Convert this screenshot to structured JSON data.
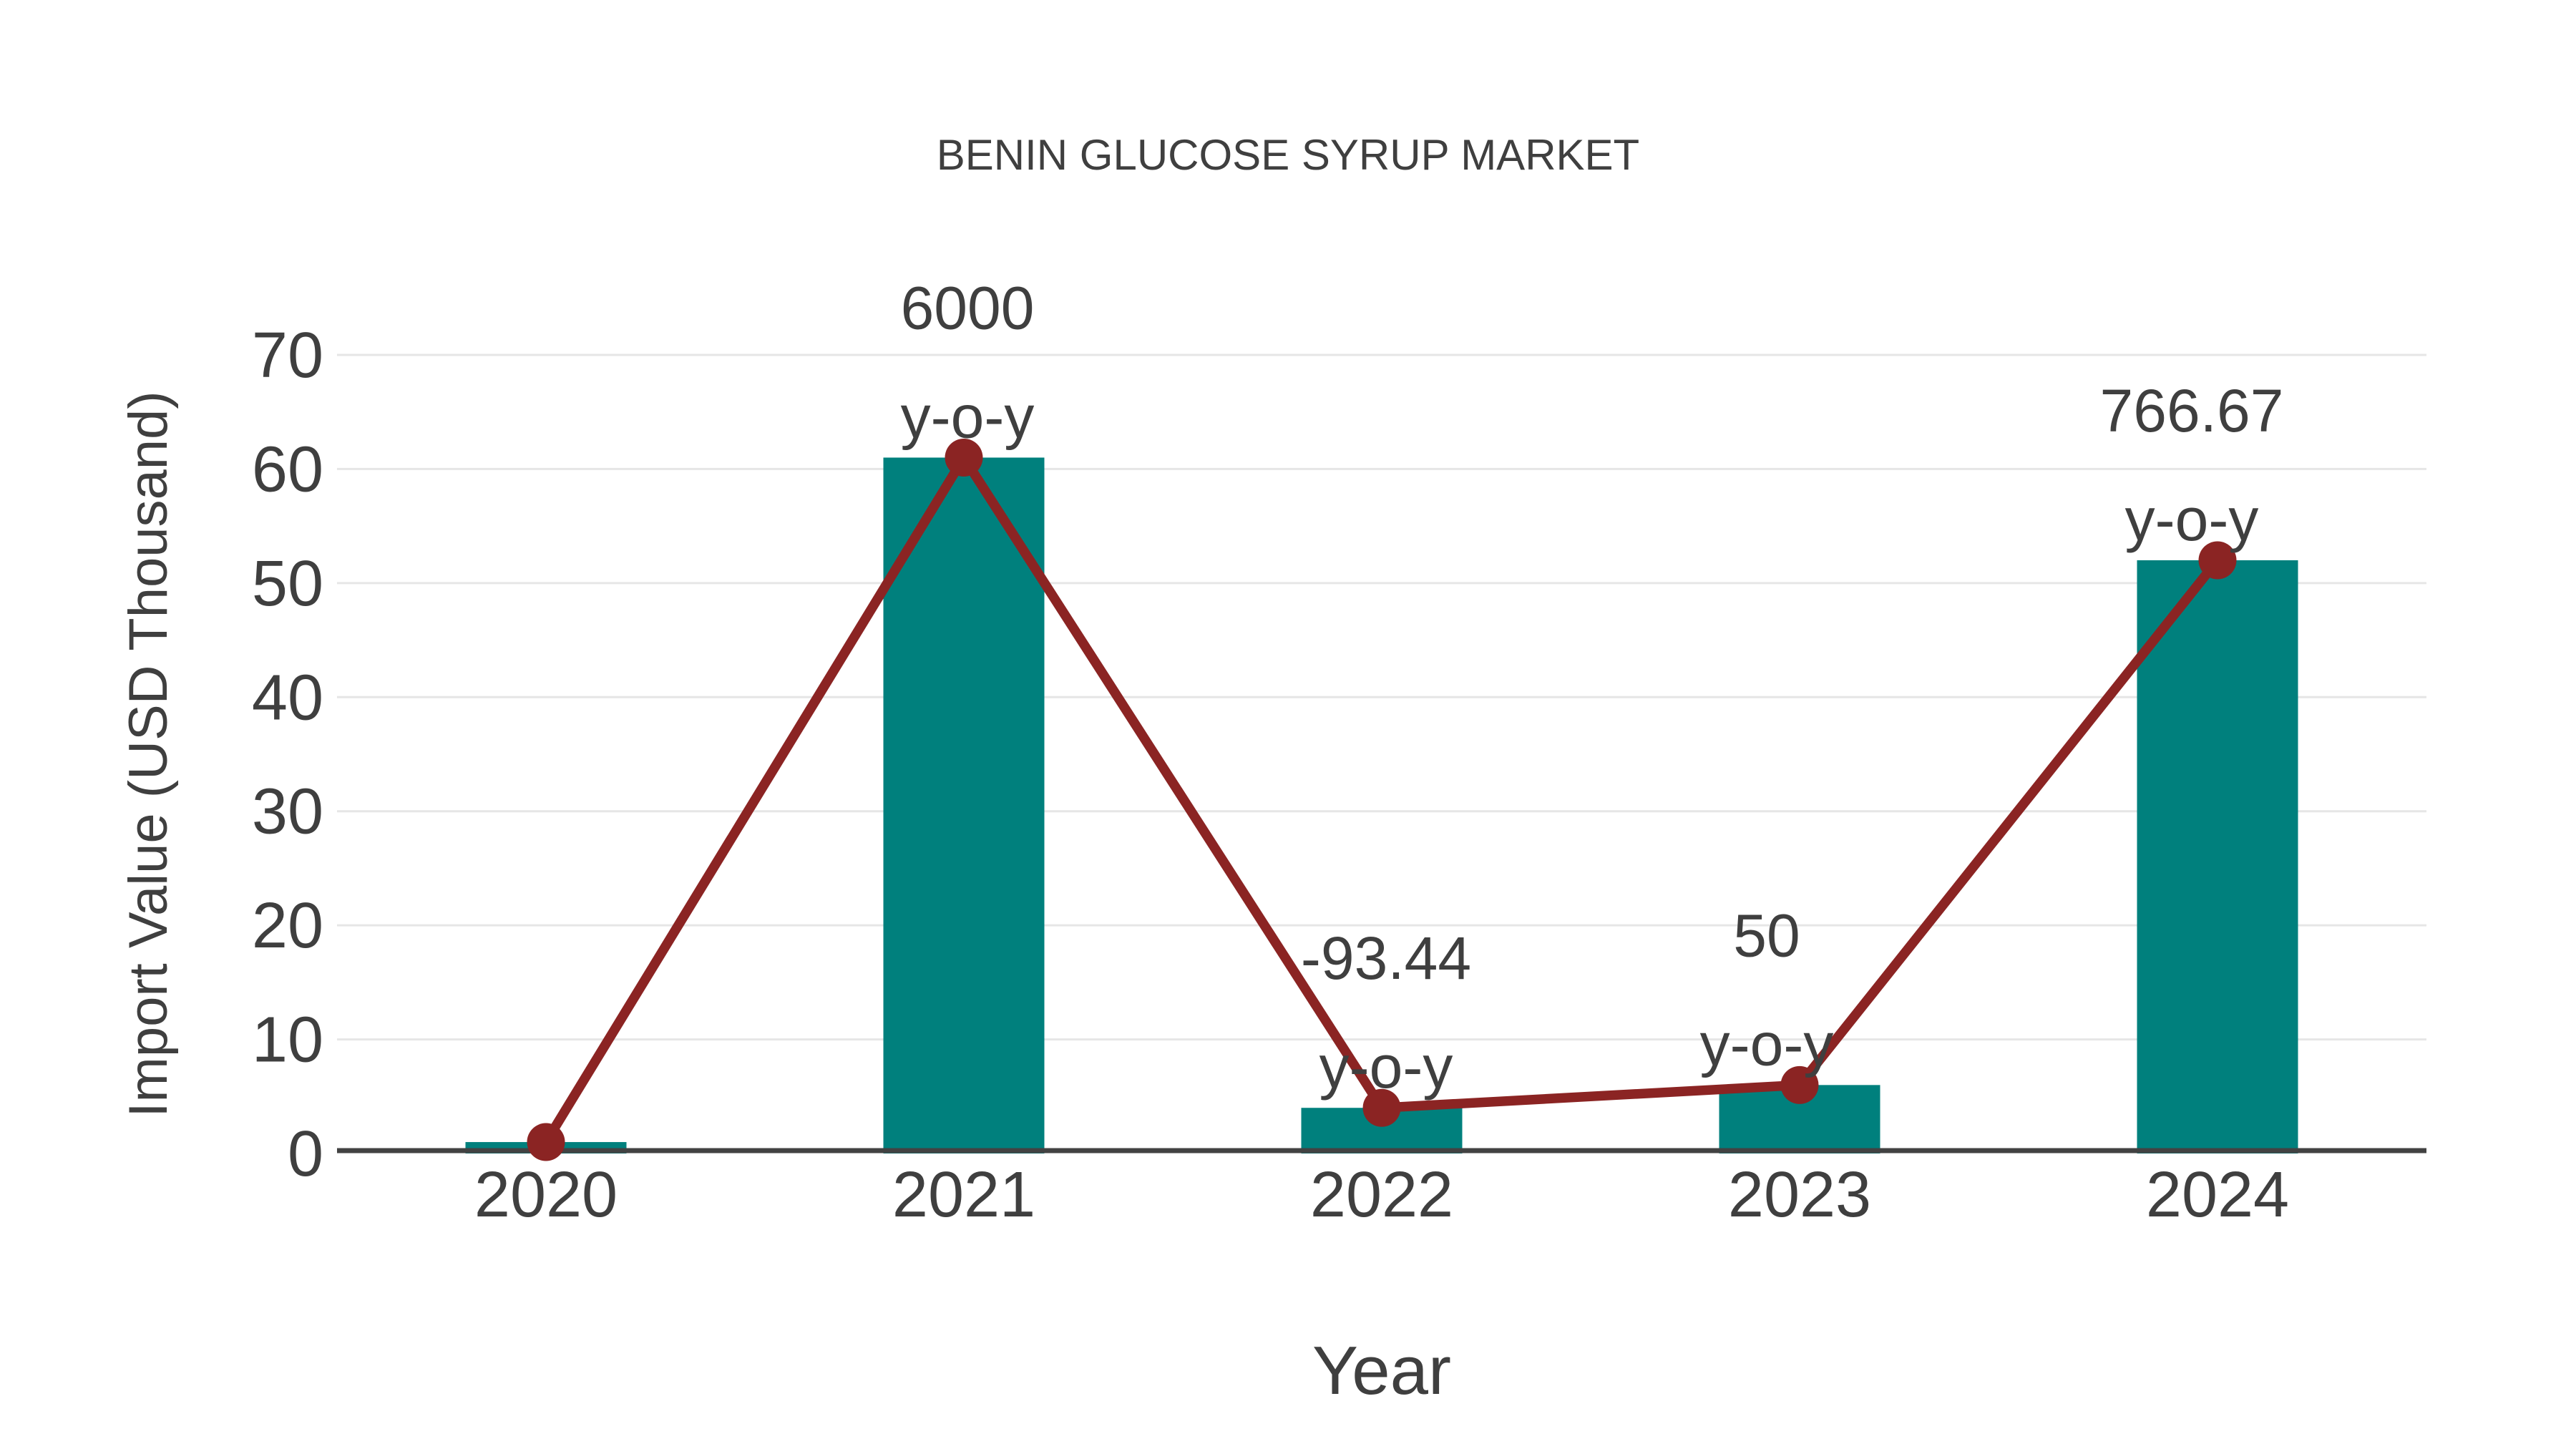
{
  "chart_data": {
    "type": "bar",
    "title": "BENIN GLUCOSE SYRUP MARKET",
    "xlabel": "Year",
    "ylabel": "Import Value (USD Thousand)",
    "categories": [
      "2020",
      "2021",
      "2022",
      "2023",
      "2024"
    ],
    "series": [
      {
        "name": "Import Value bars",
        "type": "bar",
        "color": "#00807D",
        "values": [
          1,
          61,
          4,
          6,
          52
        ]
      },
      {
        "name": "Import Value trend",
        "type": "line",
        "color": "#8B2423",
        "values": [
          1,
          61,
          4,
          6,
          52
        ]
      }
    ],
    "annotations": [
      {
        "category": "2021",
        "lines": [
          "6000",
          "y-o-y"
        ]
      },
      {
        "category": "2022",
        "lines": [
          "-93.44",
          "y-o-y"
        ]
      },
      {
        "category": "2023",
        "lines": [
          "50",
          "y-o-y"
        ]
      },
      {
        "category": "2024",
        "lines": [
          "766.67",
          "y-o-y"
        ]
      }
    ],
    "yticks": [
      "0",
      "10",
      "20",
      "30",
      "40",
      "50",
      "60",
      "70"
    ],
    "ylim": [
      0,
      70
    ],
    "grid": "horizontal",
    "legend_position": "none",
    "colors": {
      "bar": "#00807D",
      "line": "#8B2423",
      "text": "#3F3F3F",
      "grid": "#E6E6E6",
      "axis_line": "#424242"
    }
  }
}
